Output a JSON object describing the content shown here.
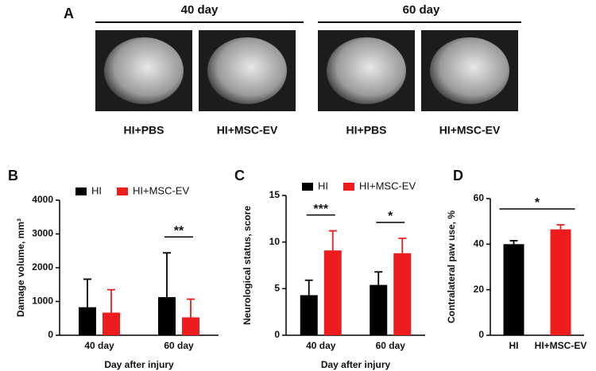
{
  "panel_a": {
    "panel": "A",
    "groups": [
      {
        "label": "40 day",
        "images": [
          "HI+PBS",
          "HI+MSC-EV"
        ]
      },
      {
        "label": "60 day",
        "images": [
          "HI+PBS",
          "HI+MSC-EV"
        ]
      }
    ]
  },
  "chart_data": [
    {
      "type": "bar",
      "panel": "B",
      "categories": [
        "40 day",
        "60 day"
      ],
      "series": [
        {
          "name": "HI",
          "color": "#000000",
          "values": [
            830,
            1130
          ],
          "errors": [
            830,
            1310
          ]
        },
        {
          "name": "HI+MSC-EV",
          "color": "#ee1c1c",
          "values": [
            670,
            530
          ],
          "errors": [
            680,
            540
          ]
        }
      ],
      "ylim": [
        0,
        4000
      ],
      "yticks": [
        0,
        1000,
        2000,
        3000,
        4000
      ],
      "ylabel": "Damage volume, mm³",
      "xlabel": "Day after injury",
      "annotations": [
        {
          "text": "**",
          "category": "60 day"
        }
      ]
    },
    {
      "type": "bar",
      "panel": "C",
      "categories": [
        "40 day",
        "60 day"
      ],
      "series": [
        {
          "name": "HI",
          "color": "#000000",
          "values": [
            4.3,
            5.4
          ],
          "errors": [
            1.6,
            1.4
          ]
        },
        {
          "name": "HI+MSC-EV",
          "color": "#ee1c1c",
          "values": [
            9.1,
            8.8
          ],
          "errors": [
            2.1,
            1.6
          ]
        }
      ],
      "ylim": [
        0,
        15
      ],
      "yticks": [
        0,
        5,
        10,
        15
      ],
      "ylabel": "Neurological status, score",
      "xlabel": "Day after injury",
      "annotations": [
        {
          "text": "***",
          "category": "40 day"
        },
        {
          "text": "*",
          "category": "60 day"
        }
      ]
    },
    {
      "type": "bar",
      "panel": "D",
      "categories": [
        "HI",
        "HI+MSC-EV"
      ],
      "values": [
        40,
        46.5
      ],
      "errors": [
        1.5,
        2
      ],
      "colors": [
        "#000000",
        "#ee1c1c"
      ],
      "ylim": [
        0,
        60
      ],
      "yticks": [
        0,
        20,
        40,
        60
      ],
      "ylabel": "Contralateral paw use, %",
      "annotations": [
        {
          "text": "*"
        }
      ]
    }
  ]
}
